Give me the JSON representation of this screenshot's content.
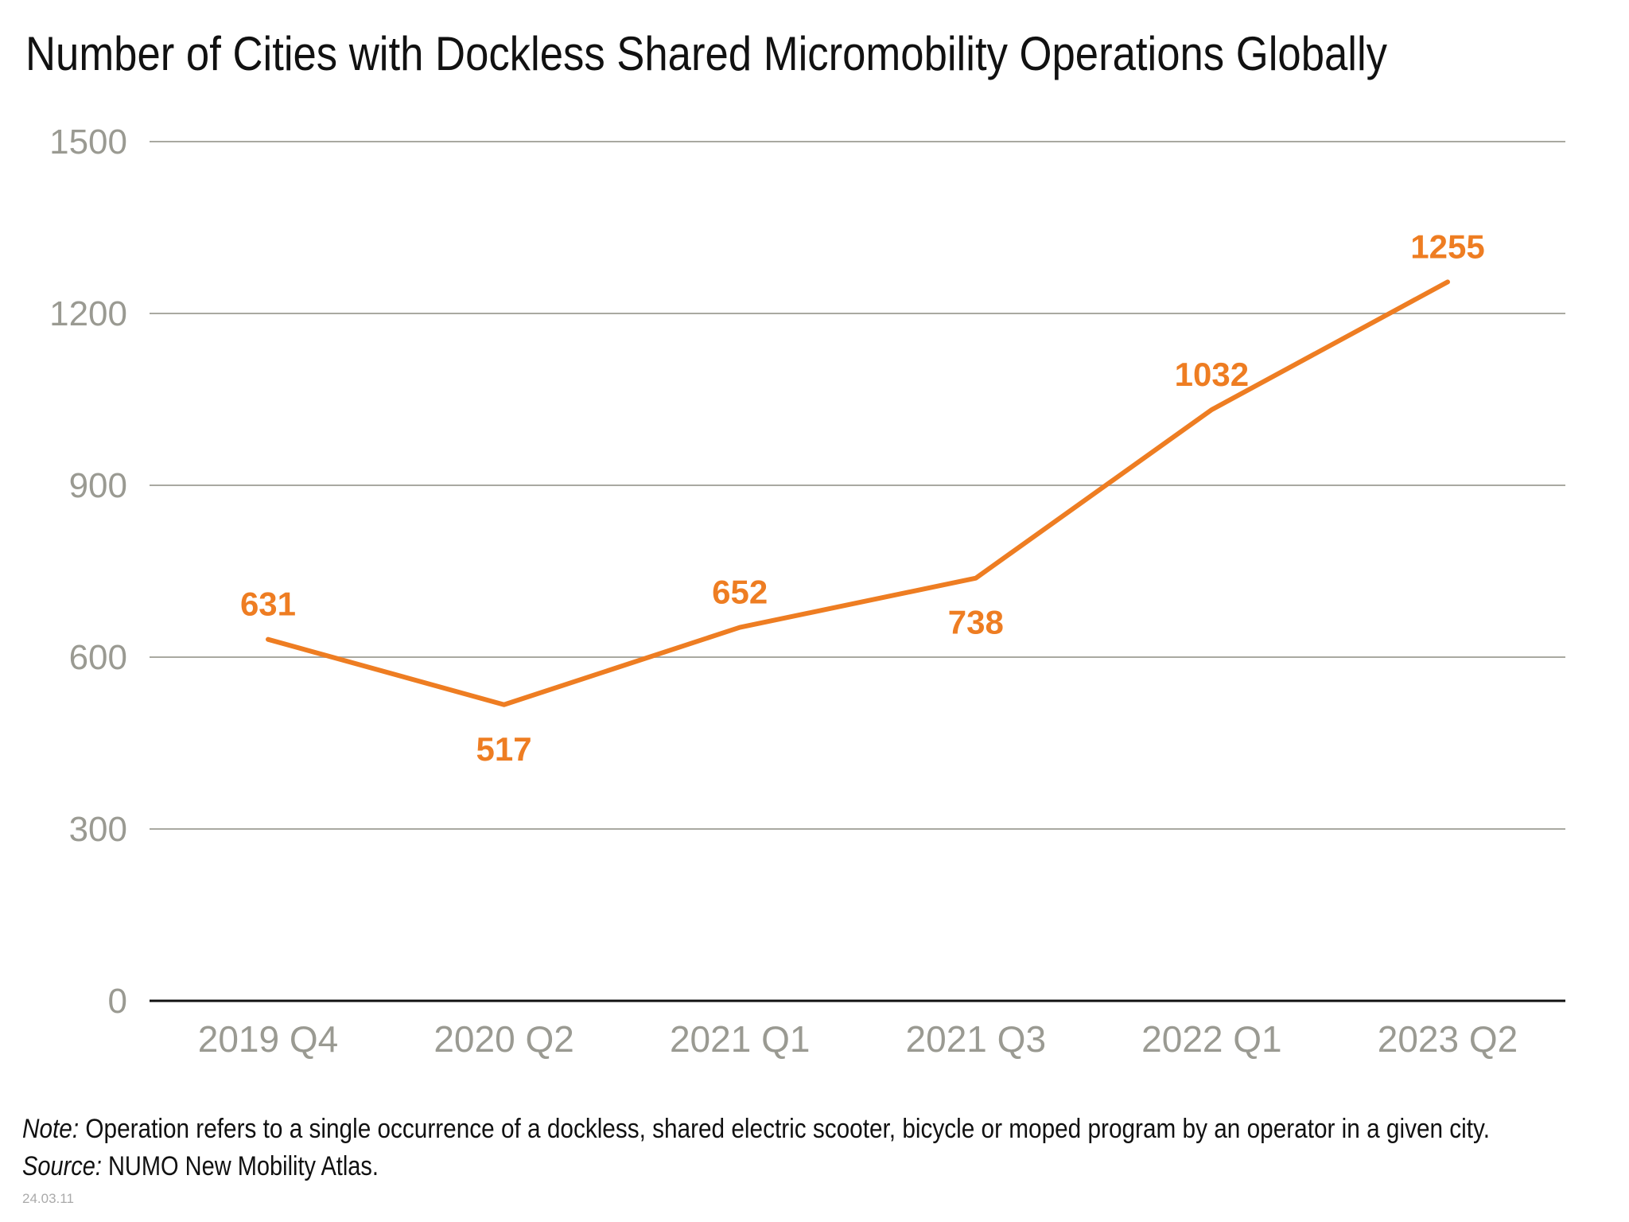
{
  "chart_data": {
    "type": "line",
    "title": "Number of Cities with Dockless Shared Micromobility Operations Globally",
    "categories": [
      "2019 Q4",
      "2020 Q2",
      "2021 Q1",
      "2021 Q3",
      "2022 Q1",
      "2023 Q2"
    ],
    "values": [
      631,
      517,
      652,
      738,
      1032,
      1255
    ],
    "data_labels": [
      "631",
      "517",
      "652",
      "738",
      "1032",
      "1255"
    ],
    "label_positions": [
      "above",
      "below",
      "above",
      "below",
      "above",
      "above"
    ],
    "ylim": [
      0,
      1500
    ],
    "yticks": [
      "0",
      "300",
      "600",
      "900",
      "1200",
      "1500"
    ],
    "grid": true,
    "line_color": "#ee7d22",
    "grid_color": "#a9a9a1",
    "xlabel": "",
    "ylabel": ""
  },
  "footer": {
    "note_label": "Note:",
    "note_text": " Operation refers to a single occurrence of a dockless, shared electric scooter, bicycle or moped program by an operator in a given city.",
    "source_label": "Source:",
    "source_text": " NUMO New Mobility Atlas.",
    "date": "24.03.11"
  }
}
